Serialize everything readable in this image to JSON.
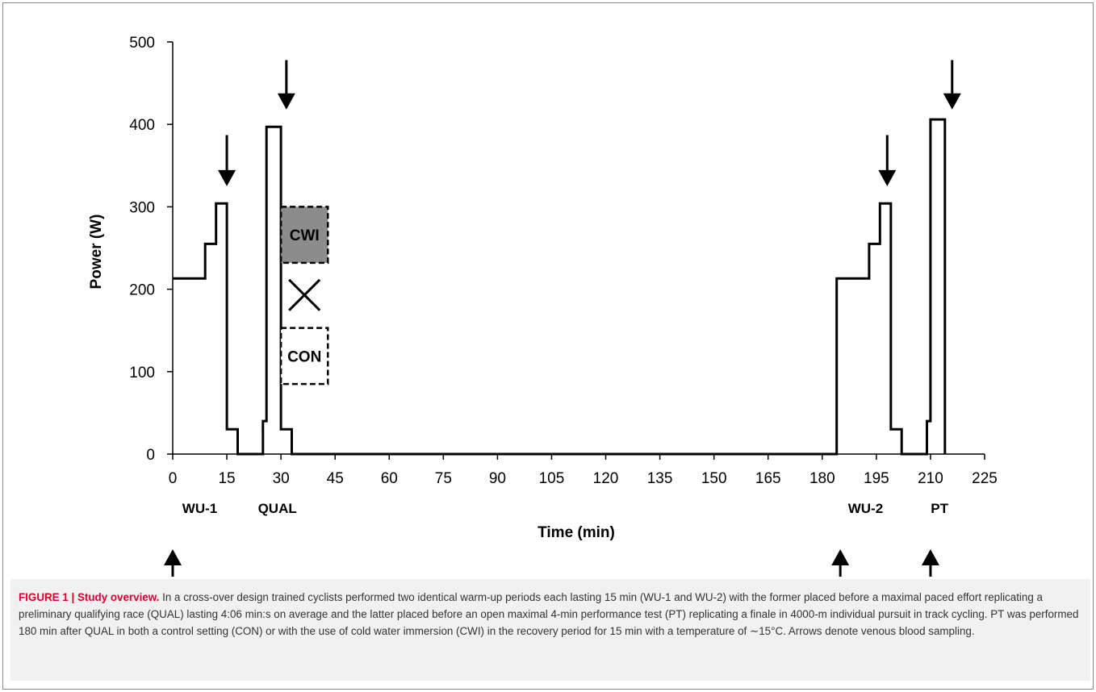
{
  "chart_data": {
    "type": "line",
    "xlabel": "Time (min)",
    "ylabel": "Power (W)",
    "xlim": [
      0,
      225
    ],
    "ylim": [
      0,
      500
    ],
    "xticks": [
      0,
      15,
      30,
      45,
      60,
      75,
      90,
      105,
      120,
      135,
      150,
      165,
      180,
      195,
      210,
      225
    ],
    "yticks": [
      0,
      100,
      200,
      300,
      400,
      500
    ],
    "grid": false,
    "series": [
      {
        "points": [
          [
            0,
            213
          ],
          [
            9,
            213
          ],
          [
            9,
            255
          ],
          [
            12,
            255
          ],
          [
            12,
            304
          ],
          [
            15,
            304
          ],
          [
            15,
            30
          ],
          [
            18,
            30
          ],
          [
            18,
            0
          ],
          [
            25,
            0
          ],
          [
            25,
            40
          ],
          [
            26,
            40
          ],
          [
            26,
            397
          ],
          [
            30,
            397
          ],
          [
            30,
            30
          ],
          [
            33,
            30
          ],
          [
            33,
            0
          ],
          [
            184,
            0
          ],
          [
            184,
            213
          ],
          [
            193,
            213
          ],
          [
            193,
            255
          ],
          [
            196,
            255
          ],
          [
            196,
            304
          ],
          [
            199,
            304
          ],
          [
            199,
            30
          ],
          [
            202,
            30
          ],
          [
            202,
            0
          ],
          [
            209,
            0
          ],
          [
            209,
            40
          ],
          [
            210,
            40
          ],
          [
            210,
            406
          ],
          [
            214,
            406
          ],
          [
            214,
            0
          ]
        ]
      }
    ],
    "phase_labels": [
      {
        "text": "WU-1",
        "x": 7.5
      },
      {
        "text": "QUAL",
        "x": 29
      },
      {
        "text": "WU-2",
        "x": 192
      },
      {
        "text": "PT",
        "x": 212.5
      }
    ],
    "down_arrows": [
      {
        "x": 15,
        "from": 387,
        "to": 325
      },
      {
        "x": 31.5,
        "from": 478,
        "to": 418
      },
      {
        "x": 198,
        "from": 387,
        "to": 325
      },
      {
        "x": 216,
        "from": 478,
        "to": 418
      }
    ],
    "up_arrows": [
      {
        "x": 0
      },
      {
        "x": 185
      },
      {
        "x": 210
      }
    ],
    "condition_boxes": [
      {
        "text": "CWI",
        "x_from": 30,
        "x_to": 43,
        "y_from": 232,
        "y_to": 300,
        "filled": true,
        "fill": "#8c8c8c"
      },
      {
        "text": "CON",
        "x_from": 30,
        "x_to": 43,
        "y_from": 85,
        "y_to": 153,
        "filled": false
      }
    ],
    "cross_marker": {
      "x": 36.5,
      "y": 193
    },
    "colors": {
      "line": "#000000",
      "box_fill": "#8c8c8c"
    }
  },
  "caption": {
    "label": "FIGURE 1 | Study overview.",
    "text": "In a cross-over design trained cyclists performed two identical warm-up periods each lasting 15 min (WU-1 and WU-2) with the former placed before a maximal paced effort replicating a preliminary qualifying race (QUAL) lasting 4:06 min:s on average and the latter placed before an open maximal 4-min performance test (PT) replicating a finale in 4000-m individual pursuit in track cycling. PT was performed 180 min after QUAL in both a control setting (CON) or with the use of cold water immersion (CWI) in the recovery period for 15 min with a temperature of ∼15°C. Arrows denote venous blood sampling."
  }
}
